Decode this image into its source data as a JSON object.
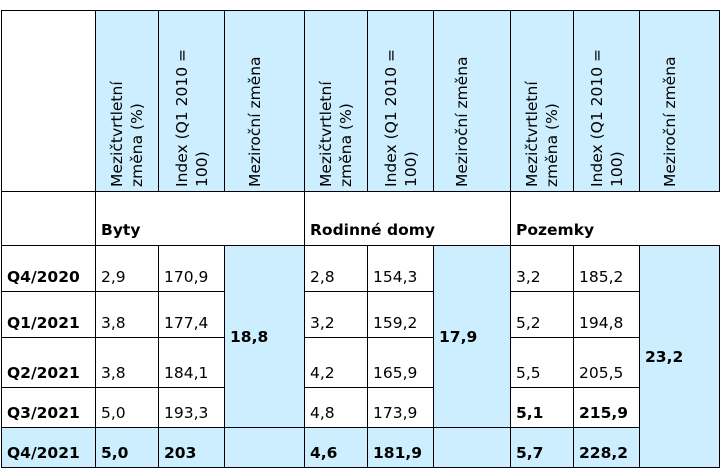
{
  "column_headers": {
    "qoq": "Mezičtvrtletní změna (%)",
    "index": "Index (Q1 2010 = 100)",
    "yoy": "Meziroční změna"
  },
  "sections": {
    "byty": "Byty",
    "domy": "Rodinné domy",
    "pozemky": "Pozemky"
  },
  "rows": [
    {
      "quarter": "Q4/2020",
      "byty_qoq": "2,9",
      "byty_idx": "170,9",
      "domy_qoq": "2,8",
      "domy_idx": "154,3",
      "poz_qoq": "3,2",
      "poz_idx": "185,2"
    },
    {
      "quarter": "Q1/2021",
      "byty_qoq": "3,8",
      "byty_idx": "177,4",
      "domy_qoq": "3,2",
      "domy_idx": "159,2",
      "poz_qoq": "5,2",
      "poz_idx": "194,8"
    },
    {
      "quarter": "Q2/2021",
      "byty_qoq": "3,8",
      "byty_idx": "184,1",
      "domy_qoq": "4,2",
      "domy_idx": "165,9",
      "poz_qoq": "5,5",
      "poz_idx": "205,5"
    },
    {
      "quarter": "Q3/2021",
      "byty_qoq": "5,0",
      "byty_idx": "193,3",
      "domy_qoq": "4,8",
      "domy_idx": "173,9",
      "poz_qoq": "5,1",
      "poz_idx": "215,9"
    },
    {
      "quarter": "Q4/2021",
      "byty_qoq": "5,0",
      "byty_idx": "203",
      "domy_qoq": "4,6",
      "domy_idx": "181,9",
      "poz_qoq": "5,7",
      "poz_idx": "228,2"
    }
  ],
  "yoy": {
    "byty": "18,8",
    "domy": "17,9",
    "pozemky": "23,2"
  },
  "colors": {
    "header_bg": "#cdeefe",
    "border": "#000000"
  }
}
